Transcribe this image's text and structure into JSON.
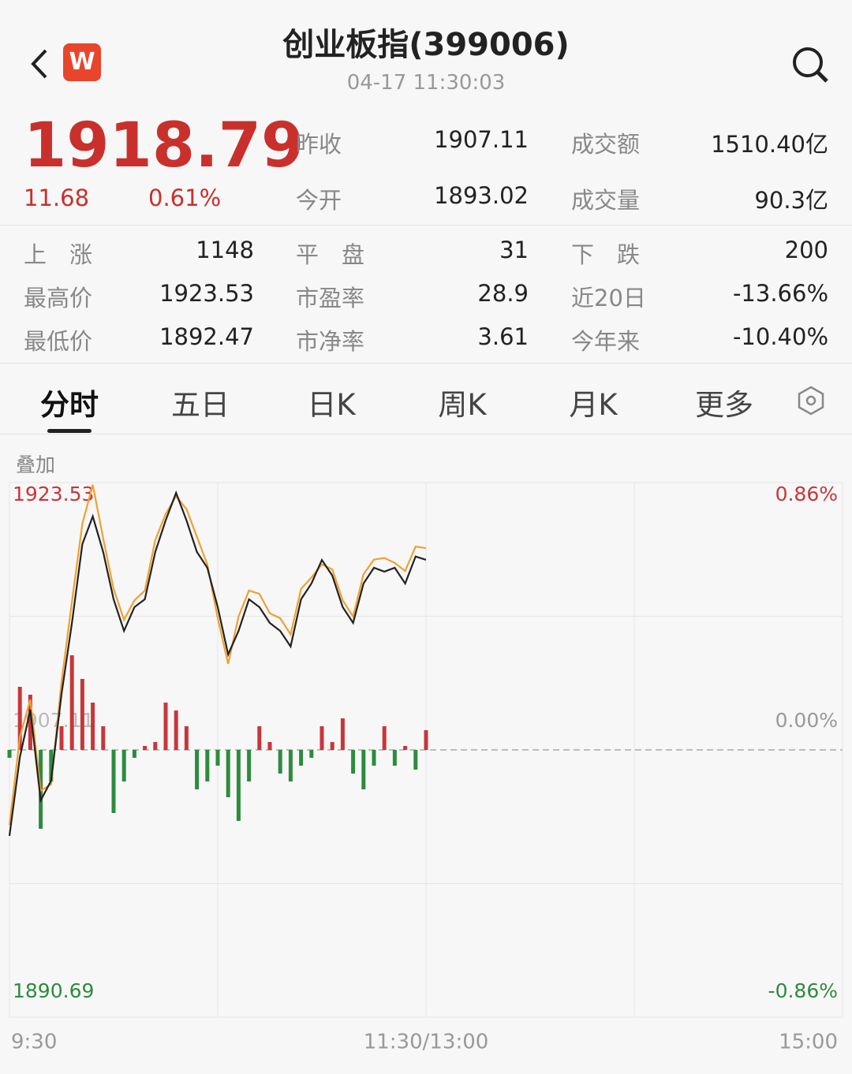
{
  "header": {
    "logo": "W",
    "title": "创业板指(399006)",
    "time": "04-17 11:30:03"
  },
  "quote": {
    "price": "1918.79",
    "change": "11.68",
    "percent": "0.61%"
  },
  "stats": [
    [
      "昨收",
      "1907.11",
      "成交额",
      "1510.40亿"
    ],
    [
      "今开",
      "1893.02",
      "成交量",
      "90.3亿"
    ]
  ],
  "breadth": [
    [
      "上　涨",
      "1148",
      "平　盘",
      "31",
      "下　跌",
      "200"
    ],
    [
      "最高价",
      "1923.53",
      "市盈率",
      "28.9",
      "近20日",
      "-13.66%"
    ],
    [
      "最低价",
      "1892.47",
      "市净率",
      "3.61",
      "今年来",
      "-10.40%"
    ]
  ],
  "tabs": [
    "分时",
    "五日",
    "日K",
    "周K",
    "月K",
    "更多"
  ],
  "overlay": "叠加",
  "chart_data": {
    "type": "line",
    "ylim": [
      1890.69,
      1923.53
    ],
    "yticks": [
      1890.69,
      1907.11,
      1923.53
    ],
    "y2lim": [
      -0.86,
      0.86
    ],
    "y2ticks": [
      {
        "value": -0.86,
        "label": "-0.86%"
      },
      {
        "value": 0,
        "label": "0.00%"
      },
      {
        "value": 0.86,
        "label": "0.86%"
      }
    ],
    "time_labels": [
      "9:30",
      "11:30/13:00",
      "15:00"
    ],
    "x": [
      "9:30",
      "9:33",
      "9:36",
      "9:39",
      "9:42",
      "9:45",
      "9:48",
      "9:51",
      "9:54",
      "9:57",
      "10:00",
      "10:03",
      "10:06",
      "10:09",
      "10:12",
      "10:15",
      "10:18",
      "10:21",
      "10:24",
      "10:27",
      "10:30",
      "10:33",
      "10:36",
      "10:39",
      "10:42",
      "10:45",
      "10:48",
      "10:51",
      "10:54",
      "10:57",
      "11:00",
      "11:03",
      "11:06",
      "11:09",
      "11:12",
      "11:15",
      "11:18",
      "11:21",
      "11:24",
      "11:27",
      "11:30"
    ],
    "series": [
      {
        "color": "#222222",
        "values": [
          1901.83,
          1906.67,
          1909.58,
          1904.01,
          1905.22,
          1910.55,
          1914.91,
          1919.75,
          1921.45,
          1919.27,
          1916.36,
          1914.42,
          1915.88,
          1916.36,
          1919.27,
          1921.21,
          1922.9,
          1921.21,
          1919.27,
          1918.3,
          1915.88,
          1912.97,
          1914.42,
          1916.36,
          1915.88,
          1914.91,
          1914.42,
          1913.46,
          1916.36,
          1917.33,
          1918.78,
          1917.82,
          1915.88,
          1914.91,
          1917.33,
          1918.3,
          1918.06,
          1918.3,
          1917.33,
          1918.99,
          1918.79
        ]
      },
      {
        "color": "#f0a030",
        "values": [
          1902.5,
          1907.9,
          1910.2,
          1904.6,
          1905.0,
          1911.3,
          1916.2,
          1921.0,
          1923.4,
          1920.1,
          1917.0,
          1915.1,
          1916.3,
          1916.9,
          1920.0,
          1921.6,
          1922.7,
          1921.9,
          1920.2,
          1918.5,
          1915.2,
          1912.4,
          1915.3,
          1916.9,
          1916.7,
          1915.5,
          1915.2,
          1914.2,
          1917.0,
          1917.7,
          1918.5,
          1918.2,
          1916.3,
          1915.3,
          1917.9,
          1918.8,
          1918.9,
          1918.6,
          1918.1,
          1919.6,
          1919.5
        ]
      }
    ],
    "bars": {
      "up_color": "#c8363a",
      "down_color": "#2e8b3e",
      "values": [
        -10,
        80,
        70,
        -100,
        -40,
        30,
        120,
        90,
        60,
        30,
        -80,
        -40,
        -10,
        5,
        10,
        60,
        50,
        30,
        -50,
        -40,
        -20,
        -60,
        -90,
        -40,
        30,
        10,
        -30,
        -40,
        -20,
        -10,
        30,
        10,
        40,
        -30,
        -50,
        -20,
        30,
        -20,
        5,
        -25,
        25
      ]
    }
  }
}
